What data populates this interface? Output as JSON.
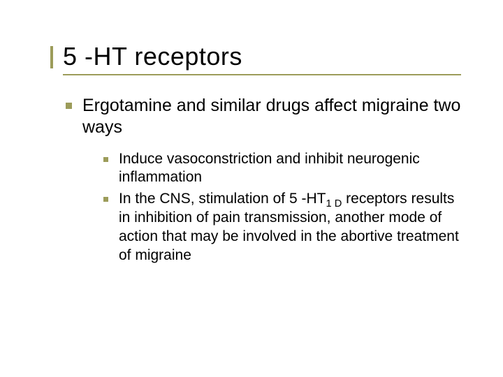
{
  "colors": {
    "accent": "#9c9c5a",
    "text": "#000000",
    "background": "#ffffff"
  },
  "typography": {
    "title_fontsize": 36,
    "level1_fontsize": 25,
    "level2_fontsize": 21,
    "font_family": "Verdana"
  },
  "title": "5 -HT receptors",
  "bullets": {
    "level1_0": "Ergotamine and similar drugs affect migraine two ways",
    "level2_0": "Induce vasoconstriction and inhibit neurogenic inflammation",
    "level2_1_pre": "In the CNS, stimulation of 5 -HT",
    "level2_1_sub": "1 D",
    "level2_1_post": " receptors results in inhibition of pain transmission,  another mode of action that may be involved in the abortive treatment of migraine"
  }
}
